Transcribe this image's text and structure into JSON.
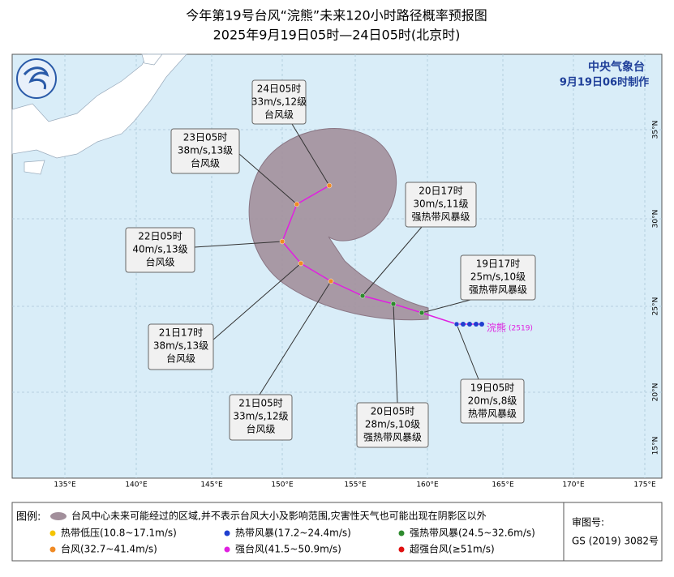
{
  "header": {
    "title": "今年第19号台风“浣熊”未来120小时路径概率预报图",
    "subtitle": "2025年9月19日05时—24日05时(北京时)"
  },
  "agency": {
    "name": "中央气象台",
    "issued": "9月19日06时制作"
  },
  "typhoon_label": {
    "name": "浣熊",
    "code": "(2519)"
  },
  "forecast_points": [
    {
      "time": "19日05时",
      "wind": "20m/s,8级",
      "category": "热带风暴级"
    },
    {
      "time": "19日17时",
      "wind": "25m/s,10级",
      "category": "强热带风暴级"
    },
    {
      "time": "20日05时",
      "wind": "28m/s,10级",
      "category": "强热带风暴级"
    },
    {
      "time": "20日17时",
      "wind": "30m/s,11级",
      "category": "强热带风暴级"
    },
    {
      "time": "21日05时",
      "wind": "33m/s,12级",
      "category": "台风级"
    },
    {
      "time": "21日17时",
      "wind": "38m/s,13级",
      "category": "台风级"
    },
    {
      "time": "22日05时",
      "wind": "40m/s,13级",
      "category": "台风级"
    },
    {
      "time": "23日05时",
      "wind": "38m/s,13级",
      "category": "台风级"
    },
    {
      "time": "24日05时",
      "wind": "33m/s,12级",
      "category": "台风级"
    }
  ],
  "axes": {
    "longitudes": [
      "135°E",
      "140°E",
      "145°E",
      "150°E",
      "155°E",
      "160°E",
      "165°E",
      "170°E",
      "175°E"
    ],
    "latitudes": [
      "35°N",
      "30°N",
      "25°N",
      "20°N",
      "15°N"
    ]
  },
  "legend": {
    "title": "图例:",
    "cone": "台风中心未来可能经过的区域,并不表示台风大小及影响范围,灾害性天气也可能出现在阴影区以外",
    "items": [
      {
        "label": "热带低压(10.8~17.1m/s)",
        "color": "#f5c400"
      },
      {
        "label": "热带风暴(17.2~24.4m/s)",
        "color": "#1f3fd0"
      },
      {
        "label": "强热带风暴(24.5~32.6m/s)",
        "color": "#2e8b2e"
      },
      {
        "label": "台风(32.7~41.4m/s)",
        "color": "#f08a24"
      },
      {
        "label": "强台风(41.5~50.9m/s)",
        "color": "#e020e0"
      },
      {
        "label": "超强台风(≥51m/s)",
        "color": "#e01010"
      }
    ]
  },
  "approval": {
    "label": "审图号:",
    "number": "GS (2019) 3082号"
  }
}
